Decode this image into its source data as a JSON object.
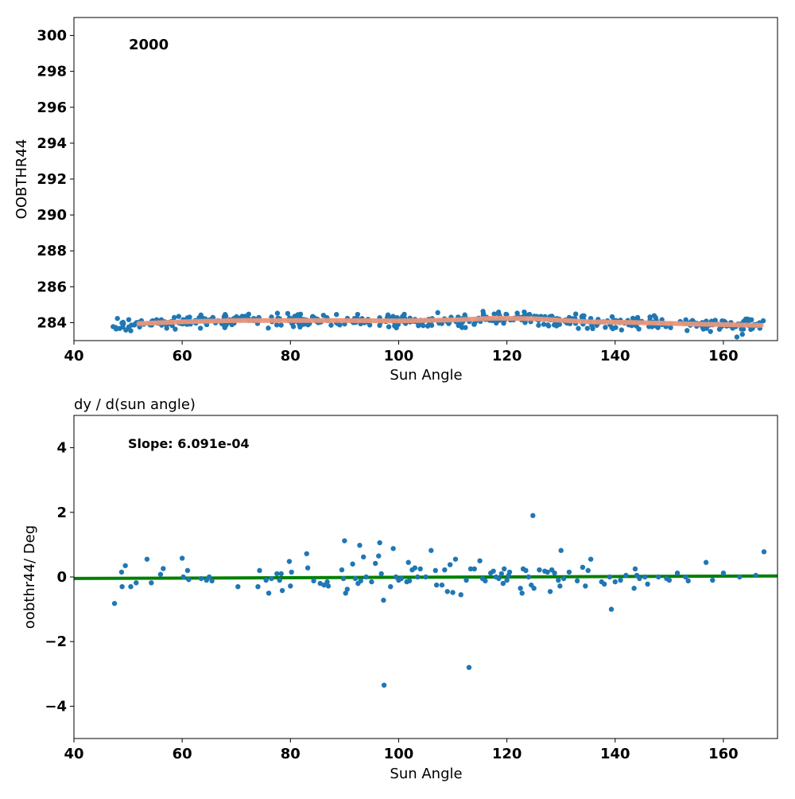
{
  "chart_data": [
    {
      "type": "scatter",
      "title": "",
      "annotation": "2000",
      "xlabel": "Sun Angle",
      "ylabel": "OOBTHR44",
      "xlim": [
        40,
        170
      ],
      "ylim": [
        283,
        301
      ],
      "xticks": [
        40,
        60,
        80,
        100,
        120,
        140,
        160
      ],
      "yticks": [
        284,
        286,
        288,
        290,
        292,
        294,
        296,
        298,
        300
      ],
      "grid": false,
      "colors": {
        "points": "#1f77b4",
        "trend": "#e9967a"
      },
      "points_description_count": 500,
      "points": [],
      "trend": {
        "x": [
          52,
          60,
          70,
          80,
          90,
          100,
          110,
          118,
          125,
          135,
          145,
          155,
          167
        ],
        "y": [
          283.95,
          284.05,
          284.12,
          284.12,
          284.12,
          284.1,
          284.15,
          284.25,
          284.22,
          284.05,
          284.0,
          283.92,
          283.85
        ]
      }
    },
    {
      "type": "scatter",
      "title": "dy / d(sun angle)",
      "annotation": "Slope: 6.091e-04",
      "xlabel": "Sun Angle",
      "ylabel": "oobthr44/ Deg",
      "xlim": [
        40,
        170
      ],
      "ylim": [
        -5,
        5
      ],
      "xticks": [
        40,
        60,
        80,
        100,
        120,
        140,
        160
      ],
      "yticks": [
        -4,
        -2,
        0,
        2,
        4
      ],
      "ytick_labels": [
        "−4",
        "−2",
        "0",
        "2",
        "4"
      ],
      "grid": false,
      "colors": {
        "points": "#1f77b4",
        "fit": "#008000"
      },
      "fit": {
        "slope": 0.0006091,
        "intercept": -0.072
      },
      "points": [
        [
          47.5,
          -0.82
        ],
        [
          48.8,
          0.15
        ],
        [
          48.9,
          -0.3
        ],
        [
          49.5,
          0.35
        ],
        [
          50.5,
          -0.3
        ],
        [
          51.5,
          -0.18
        ],
        [
          53.5,
          0.55
        ],
        [
          54.3,
          -0.18
        ],
        [
          56.0,
          0.08
        ],
        [
          56.5,
          0.26
        ],
        [
          60.0,
          0.58
        ],
        [
          60.2,
          0.0
        ],
        [
          61.0,
          0.2
        ],
        [
          61.2,
          -0.08
        ],
        [
          63.5,
          -0.05
        ],
        [
          64.5,
          -0.1
        ],
        [
          65.0,
          0.0
        ],
        [
          65.5,
          -0.12
        ],
        [
          70.3,
          -0.3
        ],
        [
          74.0,
          -0.3
        ],
        [
          74.3,
          0.2
        ],
        [
          75.5,
          -0.1
        ],
        [
          76.0,
          -0.5
        ],
        [
          76.5,
          -0.05
        ],
        [
          77.5,
          0.1
        ],
        [
          78.0,
          -0.1
        ],
        [
          78.3,
          0.1
        ],
        [
          78.5,
          -0.42
        ],
        [
          79.8,
          0.48
        ],
        [
          80.0,
          -0.28
        ],
        [
          80.2,
          0.15
        ],
        [
          83.0,
          0.72
        ],
        [
          83.2,
          0.28
        ],
        [
          84.3,
          -0.12
        ],
        [
          85.5,
          -0.2
        ],
        [
          86.2,
          -0.25
        ],
        [
          86.8,
          -0.15
        ],
        [
          87.0,
          -0.28
        ],
        [
          89.5,
          0.22
        ],
        [
          89.8,
          -0.05
        ],
        [
          90.0,
          1.12
        ],
        [
          90.2,
          -0.5
        ],
        [
          90.5,
          -0.38
        ],
        [
          91.5,
          0.4
        ],
        [
          92.0,
          -0.05
        ],
        [
          92.5,
          -0.2
        ],
        [
          92.8,
          0.98
        ],
        [
          93.0,
          -0.12
        ],
        [
          93.5,
          0.62
        ],
        [
          94.0,
          0.0
        ],
        [
          95.0,
          -0.15
        ],
        [
          95.7,
          0.42
        ],
        [
          96.3,
          0.65
        ],
        [
          96.5,
          1.06
        ],
        [
          96.8,
          0.1
        ],
        [
          97.2,
          -0.72
        ],
        [
          97.3,
          -3.35
        ],
        [
          98.5,
          -0.3
        ],
        [
          99.0,
          0.88
        ],
        [
          99.5,
          0.0
        ],
        [
          100.0,
          -0.1
        ],
        [
          100.5,
          -0.05
        ],
        [
          101.5,
          -0.15
        ],
        [
          101.8,
          0.45
        ],
        [
          102.0,
          -0.12
        ],
        [
          102.5,
          0.22
        ],
        [
          103.0,
          0.28
        ],
        [
          103.5,
          0.0
        ],
        [
          104.0,
          0.25
        ],
        [
          105.0,
          0.0
        ],
        [
          106.0,
          0.82
        ],
        [
          106.8,
          0.2
        ],
        [
          107.0,
          -0.25
        ],
        [
          108.0,
          -0.25
        ],
        [
          108.5,
          0.22
        ],
        [
          109.0,
          -0.45
        ],
        [
          109.5,
          0.38
        ],
        [
          110.0,
          -0.48
        ],
        [
          110.5,
          0.55
        ],
        [
          111.5,
          -0.55
        ],
        [
          112.5,
          -0.1
        ],
        [
          113.0,
          -2.8
        ],
        [
          113.3,
          0.25
        ],
        [
          114.0,
          0.25
        ],
        [
          115.0,
          0.5
        ],
        [
          115.5,
          -0.05
        ],
        [
          116.0,
          -0.12
        ],
        [
          117.0,
          0.12
        ],
        [
          117.5,
          0.18
        ],
        [
          118.0,
          0.0
        ],
        [
          118.5,
          -0.05
        ],
        [
          119.0,
          0.1
        ],
        [
          119.3,
          -0.2
        ],
        [
          119.5,
          0.25
        ],
        [
          120.0,
          -0.1
        ],
        [
          120.3,
          0.05
        ],
        [
          120.5,
          0.15
        ],
        [
          122.5,
          -0.35
        ],
        [
          122.8,
          -0.5
        ],
        [
          123.0,
          0.25
        ],
        [
          123.5,
          0.2
        ],
        [
          124.0,
          0.0
        ],
        [
          124.5,
          -0.25
        ],
        [
          124.8,
          1.9
        ],
        [
          125.0,
          -0.35
        ],
        [
          126.0,
          0.22
        ],
        [
          127.0,
          0.18
        ],
        [
          127.5,
          0.15
        ],
        [
          128.0,
          -0.45
        ],
        [
          128.3,
          0.22
        ],
        [
          128.8,
          0.12
        ],
        [
          129.5,
          -0.1
        ],
        [
          129.8,
          -0.28
        ],
        [
          130.0,
          0.82
        ],
        [
          130.5,
          -0.05
        ],
        [
          131.5,
          0.15
        ],
        [
          133.0,
          -0.12
        ],
        [
          134.0,
          0.3
        ],
        [
          134.5,
          -0.28
        ],
        [
          135.0,
          0.2
        ],
        [
          135.5,
          0.55
        ],
        [
          137.5,
          -0.15
        ],
        [
          138.0,
          -0.22
        ],
        [
          139.0,
          0.0
        ],
        [
          139.3,
          -1.0
        ],
        [
          140.0,
          -0.15
        ],
        [
          141.0,
          -0.1
        ],
        [
          142.0,
          0.05
        ],
        [
          143.5,
          -0.35
        ],
        [
          143.7,
          0.25
        ],
        [
          144.0,
          0.05
        ],
        [
          144.5,
          -0.05
        ],
        [
          145.5,
          0.0
        ],
        [
          146.0,
          -0.22
        ],
        [
          148.0,
          0.0
        ],
        [
          149.5,
          -0.05
        ],
        [
          150.0,
          -0.1
        ],
        [
          151.5,
          0.12
        ],
        [
          153.0,
          0.0
        ],
        [
          153.5,
          -0.12
        ],
        [
          156.8,
          0.45
        ],
        [
          158.0,
          -0.1
        ],
        [
          160.0,
          0.12
        ],
        [
          163.0,
          0.0
        ],
        [
          166.0,
          0.05
        ],
        [
          167.5,
          0.78
        ]
      ]
    }
  ]
}
